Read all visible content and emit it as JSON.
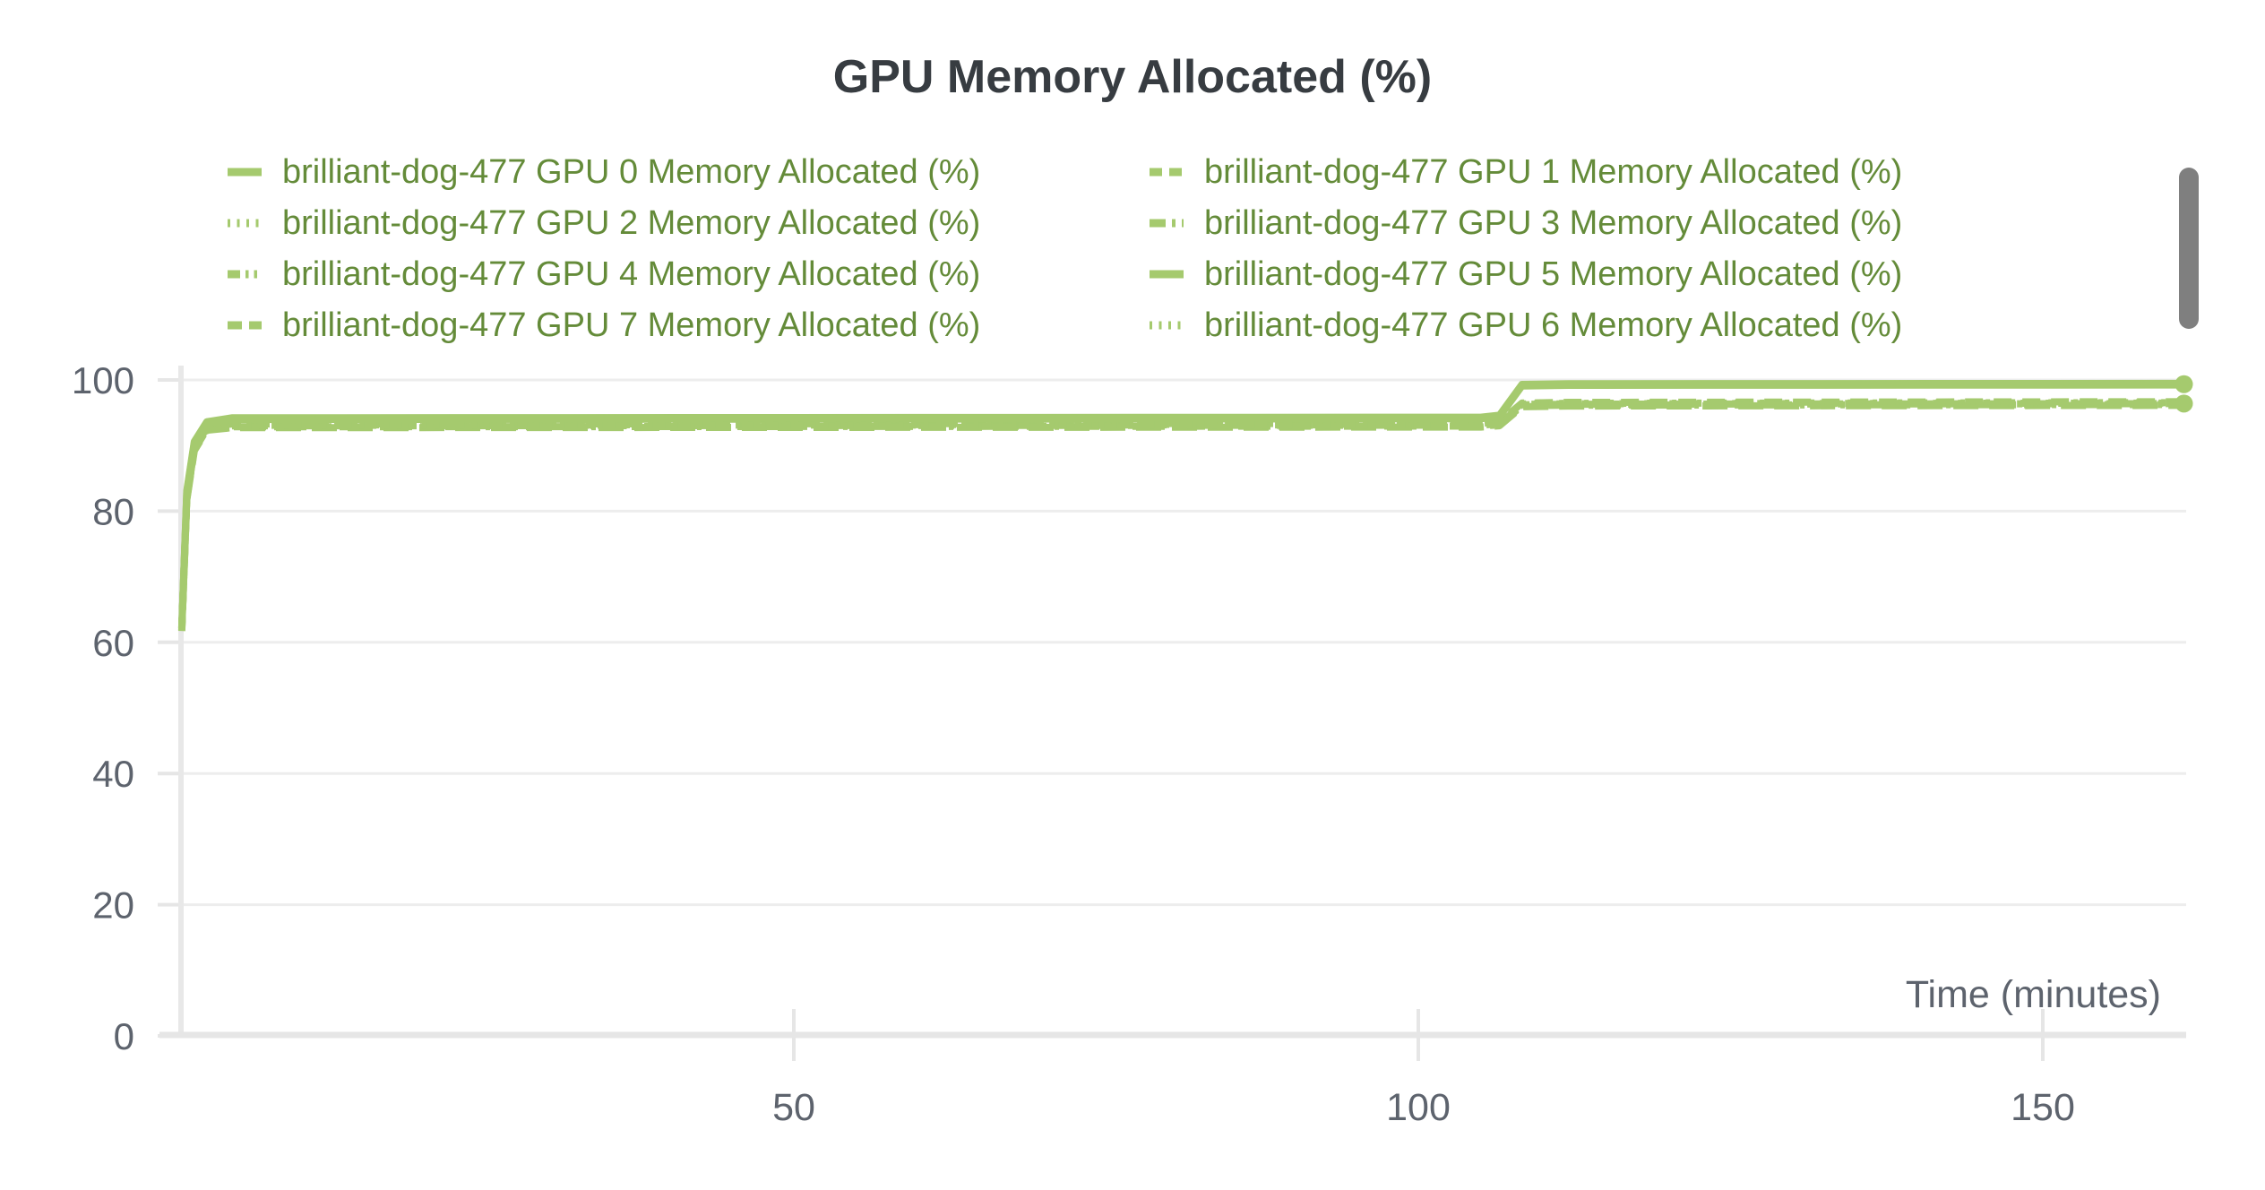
{
  "header": {
    "title": "GPU Memory Allocated (%)",
    "title_color": "#373c41"
  },
  "scrollbar": {
    "color": "#7f7f7f"
  },
  "legend": {
    "text_color": "#648b39",
    "position": "top",
    "columns": 2
  },
  "chart_data": {
    "type": "line",
    "title": "GPU Memory Allocated (%)",
    "xlabel": "Time (minutes)",
    "ylabel": "",
    "x_ticks": [
      50,
      100,
      150
    ],
    "y_ticks": [
      0,
      20,
      40,
      60,
      80,
      100
    ],
    "xlim": [
      1,
      161.5
    ],
    "ylim": [
      0,
      100
    ],
    "grid": "horizontal",
    "legend_position": "top",
    "line_color": "#a5ca6e",
    "axis_text_color": "#5d636d",
    "grid_color": "#ededed",
    "axis_line_color": "#e6e6e6",
    "series": [
      {
        "name": "brilliant-dog-477 GPU 0 Memory Allocated (%)",
        "gpu": 0,
        "dash": "solid",
        "group": "high"
      },
      {
        "name": "brilliant-dog-477 GPU 1 Memory Allocated (%)",
        "gpu": 1,
        "dash": "dashed",
        "group": "low"
      },
      {
        "name": "brilliant-dog-477 GPU 2 Memory Allocated (%)",
        "gpu": 2,
        "dash": "dotted",
        "group": "low"
      },
      {
        "name": "brilliant-dog-477 GPU 3 Memory Allocated (%)",
        "gpu": 3,
        "dash": "dashdot",
        "group": "low"
      },
      {
        "name": "brilliant-dog-477 GPU 4 Memory Allocated (%)",
        "gpu": 4,
        "dash": "dashdotdot",
        "group": "low"
      },
      {
        "name": "brilliant-dog-477 GPU 5 Memory Allocated (%)",
        "gpu": 5,
        "dash": "solid",
        "group": "high"
      },
      {
        "name": "brilliant-dog-477 GPU 7 Memory Allocated (%)",
        "gpu": 7,
        "dash": "longdash",
        "group": "low"
      },
      {
        "name": "brilliant-dog-477 GPU 6 Memory Allocated (%)",
        "gpu": 6,
        "dash": "dotted",
        "group": "low"
      }
    ],
    "group_points": {
      "high": [
        [
          1,
          62
        ],
        [
          1.4,
          83
        ],
        [
          2,
          90.5
        ],
        [
          3,
          93.5
        ],
        [
          5,
          94.1
        ],
        [
          105,
          94.2
        ],
        [
          106.5,
          94.5
        ],
        [
          108.3,
          99.2
        ],
        [
          112,
          99.3
        ],
        [
          161.3,
          99.35
        ]
      ],
      "low": [
        [
          1,
          62
        ],
        [
          1.4,
          82
        ],
        [
          2,
          89.5
        ],
        [
          3,
          92.6
        ],
        [
          5,
          93.0
        ],
        [
          105,
          93.1
        ],
        [
          106.5,
          93.3
        ],
        [
          108.3,
          96.2
        ],
        [
          112,
          96.3
        ],
        [
          161.3,
          96.4
        ]
      ]
    },
    "end_markers": [
      {
        "x": 161.3,
        "y": 99.35
      },
      {
        "x": 161.3,
        "y": 96.4
      }
    ]
  }
}
